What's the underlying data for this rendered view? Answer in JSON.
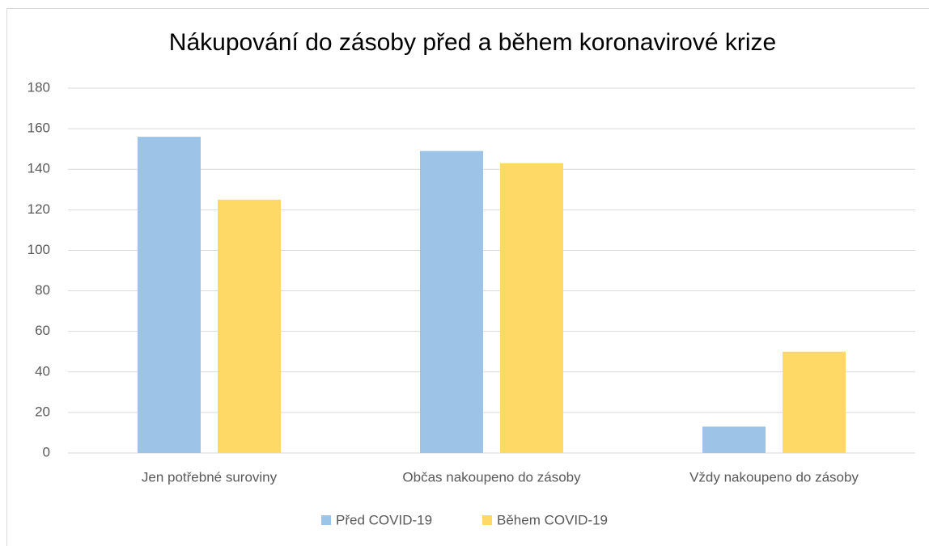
{
  "chart_data": {
    "type": "bar",
    "title": "Nákupování do zásoby před a během koronavirové krize",
    "categories": [
      "Jen potřebné suroviny",
      "Občas nakoupeno do zásoby",
      "Vždy nakoupeno do zásoby"
    ],
    "series": [
      {
        "name": "Před COVID-19",
        "color": "#9dc3e6",
        "values": [
          156,
          149,
          13
        ]
      },
      {
        "name": "Během COVID-19",
        "color": "#ffd966",
        "values": [
          125,
          143,
          50
        ]
      }
    ],
    "ylim": [
      0,
      180
    ],
    "yticks": [
      0,
      20,
      40,
      60,
      80,
      100,
      120,
      140,
      160,
      180
    ],
    "grid": true,
    "legend": "bottom"
  }
}
